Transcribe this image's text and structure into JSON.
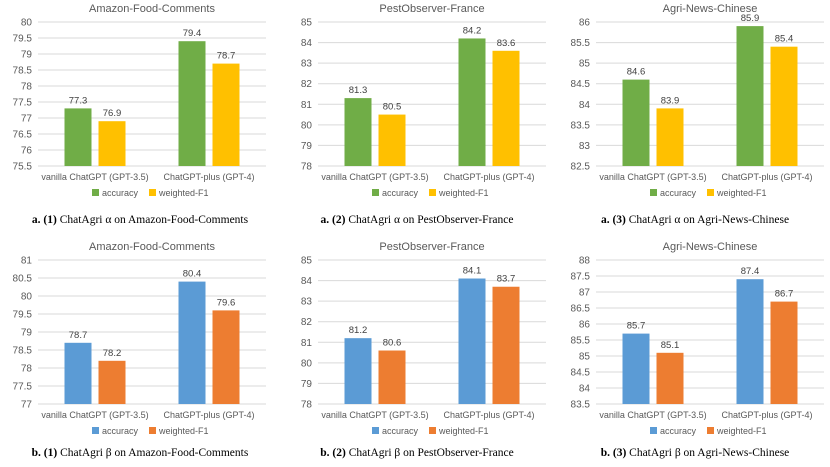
{
  "colors": {
    "accuracy_a": "#70ad47",
    "weighted_a": "#ffc000",
    "accuracy_b": "#5b9bd5",
    "weighted_b": "#ed7d31",
    "grid": "#d9d9d9",
    "text": "#595959"
  },
  "captions": [
    {
      "prefix": "a. (1)",
      "text": "ChatAgri α on Amazon-Food-Comments"
    },
    {
      "prefix": "a. (2)",
      "text": "ChatAgri α on PestObserver-France"
    },
    {
      "prefix": "a. (3)",
      "text": "ChatAgri α on Agri-News-Chinese"
    },
    {
      "prefix": "b. (1)",
      "text": " ChatAgri β on Amazon-Food-Comments"
    },
    {
      "prefix": "b. (2)",
      "text": "ChatAgri β on PestObserver-France"
    },
    {
      "prefix": "b. (3)",
      "text": "ChatAgri β on Agri-News-Chinese"
    }
  ],
  "chart_data": [
    {
      "type": "bar",
      "title": "Amazon-Food-Comments",
      "categories": [
        "vanilla ChatGPT (GPT-3.5)",
        "ChatGPT-plus (GPT-4)"
      ],
      "series": [
        {
          "name": "accuracy",
          "values": [
            77.3,
            79.4
          ]
        },
        {
          "name": "weighted-F1",
          "values": [
            76.9,
            78.7
          ]
        }
      ],
      "ylim": [
        75.5,
        80
      ],
      "yticks": [
        "75.5",
        "76",
        "76.5",
        "77",
        "77.5",
        "78",
        "78.5",
        "79",
        "79.5",
        "80"
      ],
      "legend": "bottom",
      "palette": "a"
    },
    {
      "type": "bar",
      "title": "PestObserver-France",
      "categories": [
        "vanilla ChatGPT (GPT-3.5)",
        "ChatGPT-plus (GPT-4)"
      ],
      "series": [
        {
          "name": "accuracy",
          "values": [
            81.3,
            84.2
          ]
        },
        {
          "name": "weighted-F1",
          "values": [
            80.5,
            83.6
          ]
        }
      ],
      "ylim": [
        78,
        85
      ],
      "yticks": [
        "78",
        "79",
        "80",
        "81",
        "82",
        "83",
        "84",
        "85"
      ],
      "legend": "bottom",
      "palette": "a"
    },
    {
      "type": "bar",
      "title": "Agri-News-Chinese",
      "categories": [
        "vanilla ChatGPT (GPT-3.5)",
        "ChatGPT-plus (GPT-4)"
      ],
      "series": [
        {
          "name": "accuracy",
          "values": [
            84.6,
            85.9
          ]
        },
        {
          "name": "weighted-F1",
          "values": [
            83.9,
            85.4
          ]
        }
      ],
      "ylim": [
        82.5,
        86
      ],
      "yticks": [
        "82.5",
        "83",
        "83.5",
        "84",
        "84.5",
        "85",
        "85.5",
        "86"
      ],
      "legend": "bottom",
      "palette": "a"
    },
    {
      "type": "bar",
      "title": "Amazon-Food-Comments",
      "categories": [
        "vanilla ChatGPT (GPT-3.5)",
        "ChatGPT-plus (GPT-4)"
      ],
      "series": [
        {
          "name": "accuracy",
          "values": [
            78.7,
            80.4
          ]
        },
        {
          "name": "weighted-F1",
          "values": [
            78.2,
            79.6
          ]
        }
      ],
      "ylim": [
        77,
        81
      ],
      "yticks": [
        "77",
        "77.5",
        "78",
        "78.5",
        "79",
        "79.5",
        "80",
        "80.5",
        "81"
      ],
      "legend": "bottom",
      "palette": "b"
    },
    {
      "type": "bar",
      "title": "PestObserver-France",
      "categories": [
        "vanilla ChatGPT (GPT-3.5)",
        "ChatGPT-plus (GPT-4)"
      ],
      "series": [
        {
          "name": "accuracy",
          "values": [
            81.2,
            84.1
          ]
        },
        {
          "name": "weighted-F1",
          "values": [
            80.6,
            83.7
          ]
        }
      ],
      "ylim": [
        78,
        85
      ],
      "yticks": [
        "78",
        "79",
        "80",
        "81",
        "82",
        "83",
        "84",
        "85"
      ],
      "legend": "bottom",
      "palette": "b"
    },
    {
      "type": "bar",
      "title": "Agri-News-Chinese",
      "categories": [
        "vanilla ChatGPT (GPT-3.5)",
        "ChatGPT-plus (GPT-4)"
      ],
      "series": [
        {
          "name": "accuracy",
          "values": [
            85.7,
            87.4
          ]
        },
        {
          "name": "weighted-F1",
          "values": [
            85.1,
            86.7
          ]
        }
      ],
      "ylim": [
        83.5,
        88
      ],
      "yticks": [
        "83.5",
        "84",
        "84.5",
        "85",
        "85.5",
        "86",
        "86.5",
        "87",
        "87.5",
        "88"
      ],
      "legend": "bottom",
      "palette": "b"
    }
  ]
}
